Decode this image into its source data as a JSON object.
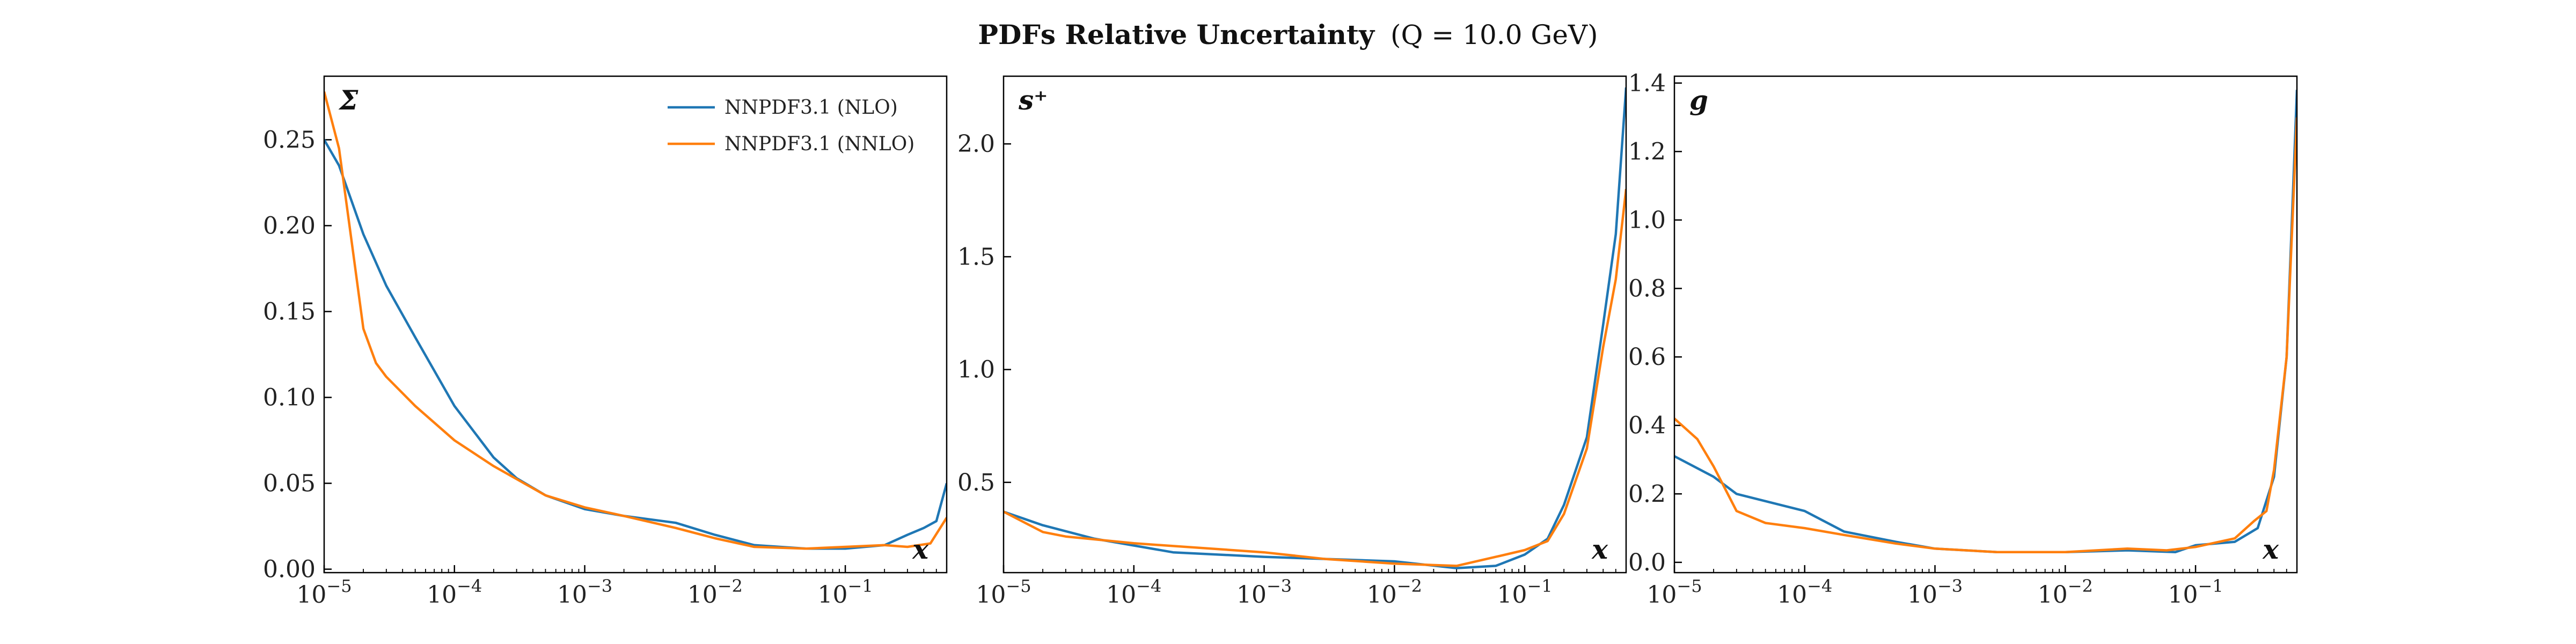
{
  "figure_title": {
    "bold": "PDFs Relative Uncertainty",
    "rest": "(Q = 10.0 GeV)"
  },
  "chart_data": [
    {
      "type": "line",
      "panel_label": "Σ",
      "xlabel": "x",
      "xscale": "log",
      "xlim": [
        1e-05,
        0.6
      ],
      "ylim": [
        -0.002,
        0.287
      ],
      "yticks": [
        0.0,
        0.05,
        0.1,
        0.15,
        0.2,
        0.25
      ],
      "ytick_labels": [
        "0.00",
        "0.05",
        "0.10",
        "0.15",
        "0.20",
        "0.25"
      ],
      "legend": "top-right",
      "series": [
        {
          "name": "NNPDF3.1 (NLO)",
          "color": "#1f77b4",
          "points": [
            [
              1e-05,
              0.25
            ],
            [
              1.3e-05,
              0.235
            ],
            [
              2e-05,
              0.195
            ],
            [
              3e-05,
              0.165
            ],
            [
              5e-05,
              0.135
            ],
            [
              0.0001,
              0.095
            ],
            [
              0.0002,
              0.065
            ],
            [
              0.0003,
              0.053
            ],
            [
              0.0005,
              0.043
            ],
            [
              0.001,
              0.035
            ],
            [
              0.002,
              0.031
            ],
            [
              0.005,
              0.027
            ],
            [
              0.01,
              0.02
            ],
            [
              0.02,
              0.014
            ],
            [
              0.05,
              0.012
            ],
            [
              0.1,
              0.012
            ],
            [
              0.2,
              0.014
            ],
            [
              0.3,
              0.02
            ],
            [
              0.4,
              0.024
            ],
            [
              0.5,
              0.028
            ],
            [
              0.6,
              0.05
            ]
          ]
        },
        {
          "name": "NNPDF3.1 (NNLO)",
          "color": "#ff7f0e",
          "points": [
            [
              1e-05,
              0.278
            ],
            [
              1.3e-05,
              0.245
            ],
            [
              1.7e-05,
              0.18
            ],
            [
              2e-05,
              0.14
            ],
            [
              2.5e-05,
              0.12
            ],
            [
              3e-05,
              0.112
            ],
            [
              5e-05,
              0.095
            ],
            [
              0.0001,
              0.075
            ],
            [
              0.0002,
              0.06
            ],
            [
              0.0005,
              0.043
            ],
            [
              0.001,
              0.036
            ],
            [
              0.002,
              0.031
            ],
            [
              0.005,
              0.024
            ],
            [
              0.01,
              0.018
            ],
            [
              0.02,
              0.013
            ],
            [
              0.05,
              0.012
            ],
            [
              0.1,
              0.013
            ],
            [
              0.2,
              0.014
            ],
            [
              0.3,
              0.013
            ],
            [
              0.45,
              0.015
            ],
            [
              0.6,
              0.03
            ]
          ]
        }
      ]
    },
    {
      "type": "line",
      "panel_label": "s⁺",
      "xlabel": "x",
      "xscale": "log",
      "xlim": [
        1e-05,
        0.6
      ],
      "ylim": [
        0.1,
        2.3
      ],
      "yticks": [
        0.5,
        1.0,
        1.5,
        2.0
      ],
      "ytick_labels": [
        "0.5",
        "1.0",
        "1.5",
        "2.0"
      ],
      "series": [
        {
          "name": "NNPDF3.1 (NLO)",
          "color": "#1f77b4",
          "points": [
            [
              1e-05,
              0.37
            ],
            [
              2e-05,
              0.31
            ],
            [
              5e-05,
              0.25
            ],
            [
              0.0001,
              0.22
            ],
            [
              0.0002,
              0.19
            ],
            [
              0.001,
              0.17
            ],
            [
              0.01,
              0.15
            ],
            [
              0.03,
              0.12
            ],
            [
              0.06,
              0.13
            ],
            [
              0.1,
              0.18
            ],
            [
              0.15,
              0.25
            ],
            [
              0.2,
              0.4
            ],
            [
              0.3,
              0.7
            ],
            [
              0.4,
              1.2
            ],
            [
              0.5,
              1.6
            ],
            [
              0.6,
              2.25
            ]
          ]
        },
        {
          "name": "NNPDF3.1 (NNLO)",
          "color": "#ff7f0e",
          "points": [
            [
              1e-05,
              0.37
            ],
            [
              2e-05,
              0.28
            ],
            [
              3e-05,
              0.26
            ],
            [
              0.0001,
              0.23
            ],
            [
              0.001,
              0.19
            ],
            [
              0.003,
              0.16
            ],
            [
              0.01,
              0.14
            ],
            [
              0.03,
              0.13
            ],
            [
              0.06,
              0.17
            ],
            [
              0.1,
              0.2
            ],
            [
              0.15,
              0.24
            ],
            [
              0.2,
              0.36
            ],
            [
              0.3,
              0.65
            ],
            [
              0.4,
              1.1
            ],
            [
              0.5,
              1.4
            ],
            [
              0.6,
              1.8
            ]
          ]
        }
      ]
    },
    {
      "type": "line",
      "panel_label": "g",
      "xlabel": "x",
      "xscale": "log",
      "xlim": [
        1e-05,
        0.6
      ],
      "ylim": [
        -0.03,
        1.42
      ],
      "yticks": [
        0.0,
        0.2,
        0.4,
        0.6,
        0.8,
        1.0,
        1.2,
        1.4
      ],
      "ytick_labels": [
        "0.0",
        "0.2",
        "0.4",
        "0.6",
        "0.8",
        "1.0",
        "1.2",
        "1.4"
      ],
      "series": [
        {
          "name": "NNPDF3.1 (NLO)",
          "color": "#1f77b4",
          "points": [
            [
              1e-05,
              0.31
            ],
            [
              2e-05,
              0.25
            ],
            [
              3e-05,
              0.2
            ],
            [
              0.0001,
              0.15
            ],
            [
              0.0002,
              0.09
            ],
            [
              0.0005,
              0.06
            ],
            [
              0.001,
              0.04
            ],
            [
              0.003,
              0.03
            ],
            [
              0.01,
              0.03
            ],
            [
              0.03,
              0.035
            ],
            [
              0.07,
              0.03
            ],
            [
              0.1,
              0.05
            ],
            [
              0.2,
              0.06
            ],
            [
              0.3,
              0.1
            ],
            [
              0.4,
              0.25
            ],
            [
              0.5,
              0.6
            ],
            [
              0.6,
              1.38
            ]
          ]
        },
        {
          "name": "NNPDF3.1 (NNLO)",
          "color": "#ff7f0e",
          "points": [
            [
              1e-05,
              0.42
            ],
            [
              1.5e-05,
              0.36
            ],
            [
              2e-05,
              0.28
            ],
            [
              3e-05,
              0.15
            ],
            [
              5e-05,
              0.115
            ],
            [
              0.0001,
              0.1
            ],
            [
              0.0002,
              0.08
            ],
            [
              0.0005,
              0.055
            ],
            [
              0.001,
              0.04
            ],
            [
              0.003,
              0.03
            ],
            [
              0.01,
              0.03
            ],
            [
              0.03,
              0.04
            ],
            [
              0.06,
              0.035
            ],
            [
              0.1,
              0.045
            ],
            [
              0.2,
              0.07
            ],
            [
              0.28,
              0.12
            ],
            [
              0.35,
              0.15
            ],
            [
              0.4,
              0.27
            ],
            [
              0.5,
              0.6
            ],
            [
              0.6,
              1.3
            ]
          ]
        }
      ]
    }
  ],
  "colors": {
    "nlo": "#1f77b4",
    "nnlo": "#ff7f0e"
  }
}
